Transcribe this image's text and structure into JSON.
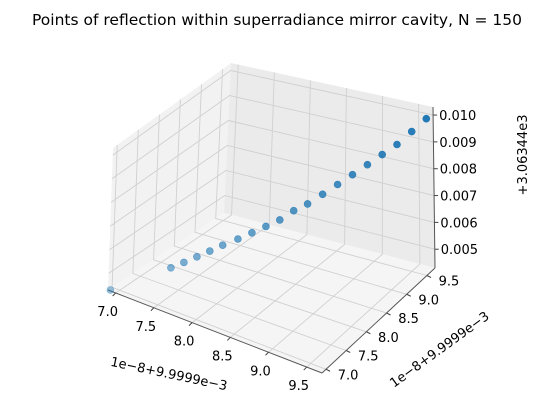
{
  "chart_data": {
    "type": "scatter",
    "projection": "3d",
    "title": "Points of reflection within superradiance mirror cavity, N = 150",
    "xlabel": "1e−8+9.9999e−3",
    "ylabel": "1e−8+9.9999e−3",
    "zlabel": "+3.06344e3",
    "x_ticks": [
      "7.0",
      "7.5",
      "8.0",
      "8.5",
      "9.0",
      "9.5"
    ],
    "y_ticks": [
      "7.0",
      "7.5",
      "8.0",
      "8.5",
      "9.0",
      "9.5"
    ],
    "z_ticks": [
      "0.005",
      "0.006",
      "0.007",
      "0.008",
      "0.009",
      "0.010"
    ],
    "xlim": [
      6.9,
      9.7
    ],
    "ylim": [
      6.9,
      9.7
    ],
    "zlim": [
      0.0043,
      0.0103
    ],
    "grid": true,
    "marker_color": "#1f77b4",
    "series": [
      {
        "x": [
          6.92,
          7.43,
          7.54,
          7.65,
          7.76,
          7.87,
          8.0,
          8.12,
          8.24,
          8.36,
          8.48,
          8.6,
          8.73,
          8.86,
          8.99,
          9.12,
          9.25,
          9.38,
          9.51,
          9.64
        ],
        "y": [
          6.92,
          7.43,
          7.54,
          7.65,
          7.76,
          7.87,
          8.0,
          8.12,
          8.24,
          8.36,
          8.48,
          8.6,
          8.73,
          8.86,
          8.99,
          9.12,
          9.25,
          9.38,
          9.51,
          9.64
        ],
        "z": [
          0.0043,
          0.0052,
          0.0054,
          0.0056,
          0.0058,
          0.006,
          0.0062,
          0.0064,
          0.0066,
          0.0068,
          0.0071,
          0.0073,
          0.0076,
          0.0079,
          0.0082,
          0.0085,
          0.0088,
          0.0091,
          0.0095,
          0.0099
        ]
      }
    ]
  }
}
